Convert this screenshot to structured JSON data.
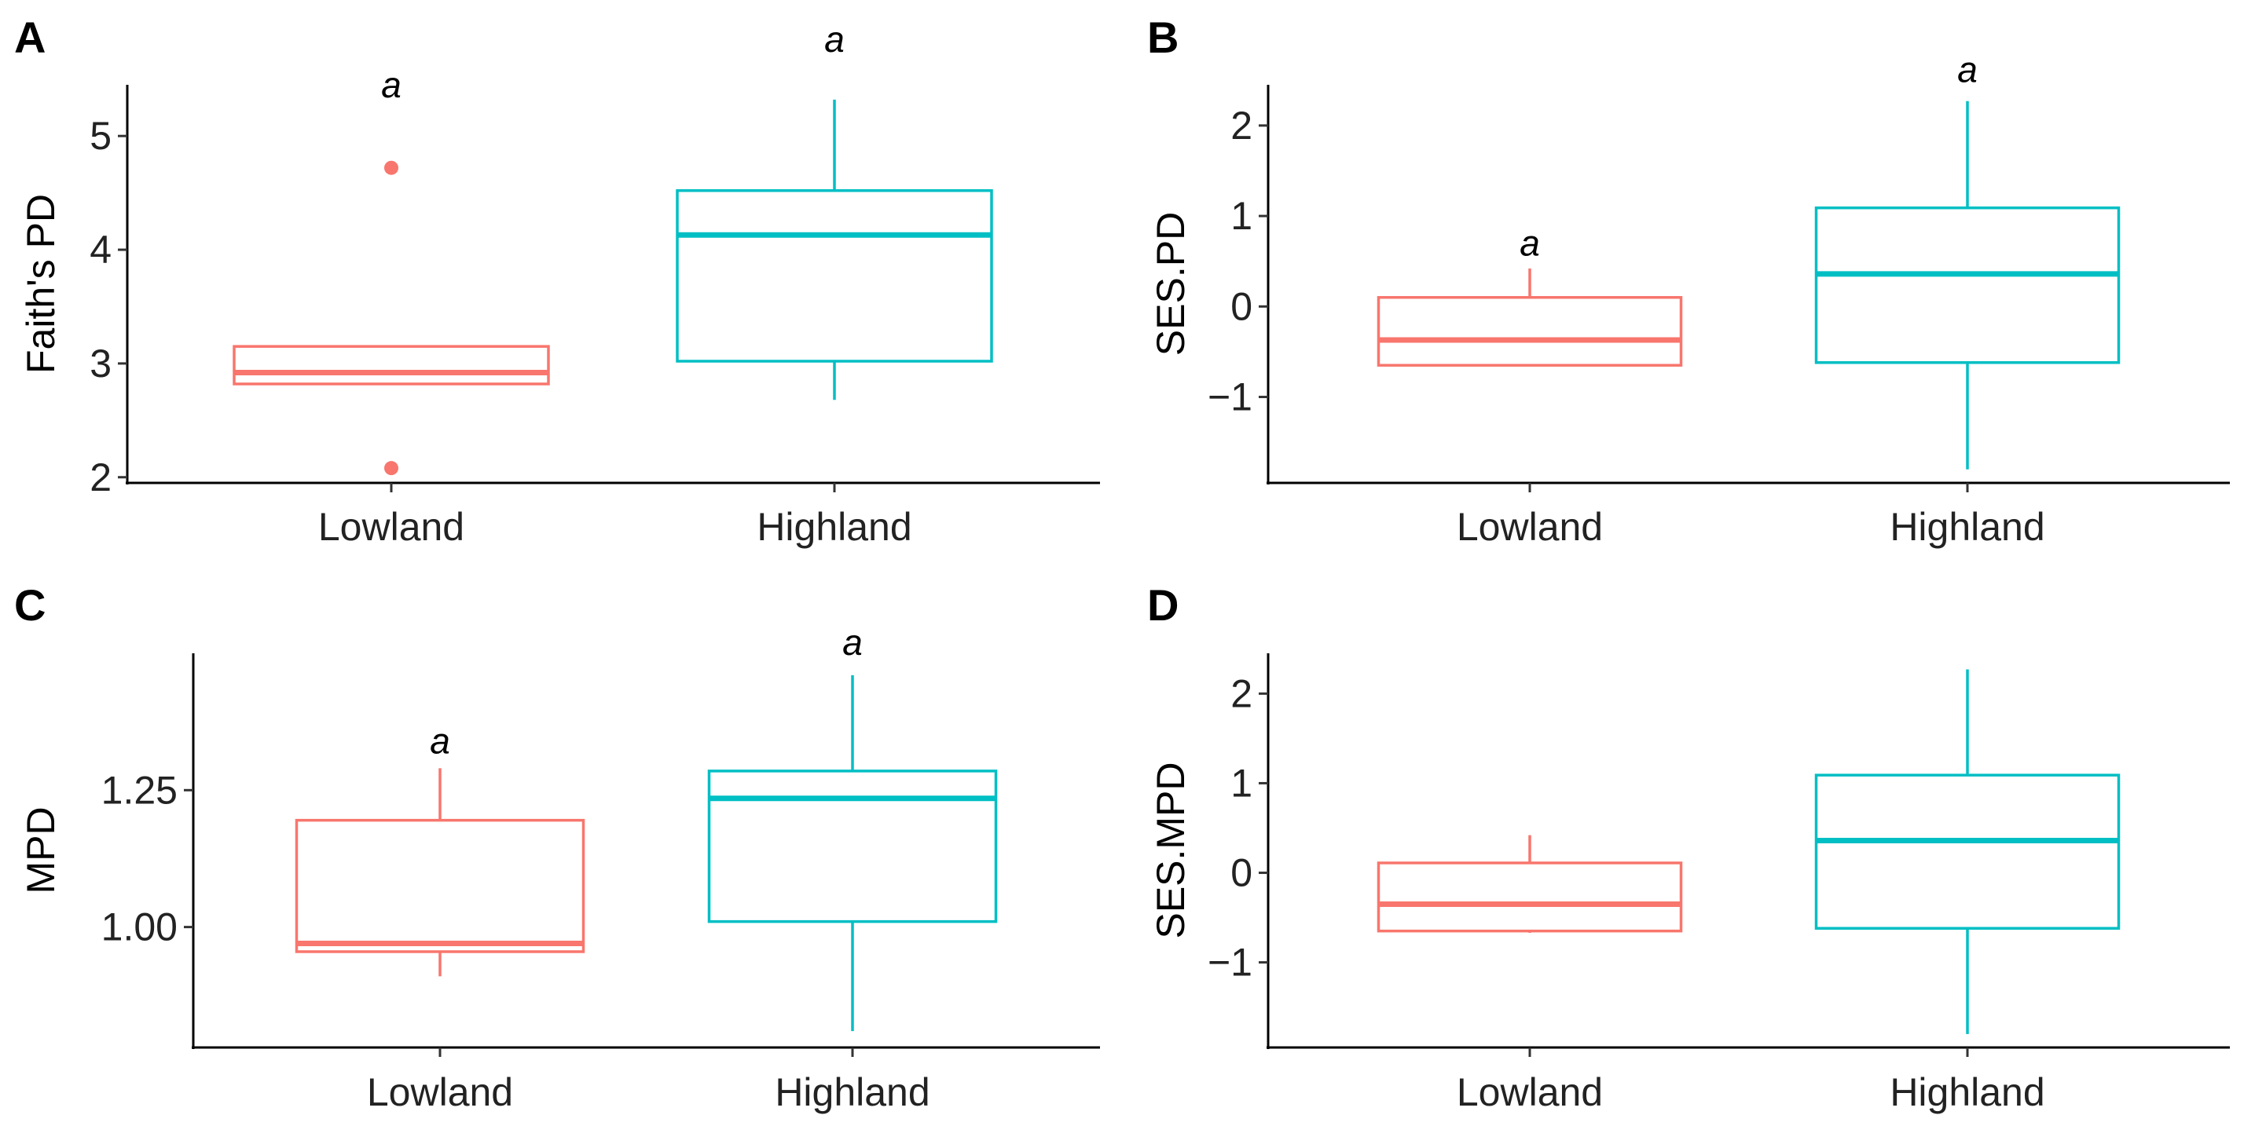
{
  "chart_data": [
    {
      "panel": "A",
      "type": "box",
      "ylabel": "Faith's PD",
      "xlabel": "",
      "categories": [
        "Lowland",
        "Highland"
      ],
      "ylim": [
        1.95,
        5.45
      ],
      "yticks": [
        2,
        3,
        4,
        5
      ],
      "ytick_labels": [
        "2",
        "3",
        "4",
        "5"
      ],
      "boxes": [
        {
          "category": "Lowland",
          "whisker_low": 2.82,
          "q1": 2.82,
          "median": 2.92,
          "q3": 3.15,
          "whisker_high": 3.15,
          "outliers": [
            4.72,
            2.08
          ],
          "sig_letter": "a",
          "sig_y": 5.45
        },
        {
          "category": "Highland",
          "whisker_low": 2.68,
          "q1": 3.02,
          "median": 4.13,
          "q3": 4.52,
          "whisker_high": 5.32,
          "outliers": [],
          "sig_letter": "a",
          "sig_y": 5.85
        }
      ],
      "colors": {
        "Lowland": "#F8766D",
        "Highland": "#00BFC4"
      }
    },
    {
      "panel": "B",
      "type": "box",
      "ylabel": "SES.PD",
      "xlabel": "",
      "categories": [
        "Lowland",
        "Highland"
      ],
      "ylim": [
        -1.95,
        2.45
      ],
      "yticks": [
        -1,
        0,
        1,
        2
      ],
      "ytick_labels": [
        "−1",
        "0",
        "1",
        "2"
      ],
      "boxes": [
        {
          "category": "Lowland",
          "whisker_low": -0.66,
          "q1": -0.65,
          "median": -0.37,
          "q3": 0.1,
          "whisker_high": 0.42,
          "outliers": [],
          "sig_letter": "a",
          "sig_y": 0.7
        },
        {
          "category": "Highland",
          "whisker_low": -1.8,
          "q1": -0.62,
          "median": 0.36,
          "q3": 1.09,
          "whisker_high": 2.27,
          "outliers": [],
          "sig_letter": "a",
          "sig_y": 2.62
        }
      ],
      "colors": {
        "Lowland": "#F8766D",
        "Highland": "#00BFC4"
      }
    },
    {
      "panel": "C",
      "type": "box",
      "ylabel": "MPD",
      "xlabel": "",
      "categories": [
        "Lowland",
        "Highland"
      ],
      "ylim": [
        0.78,
        1.5
      ],
      "yticks": [
        1.0,
        1.25
      ],
      "ytick_labels": [
        "1.00",
        "1.25"
      ],
      "boxes": [
        {
          "category": "Lowland",
          "whisker_low": 0.91,
          "q1": 0.955,
          "median": 0.97,
          "q3": 1.195,
          "whisker_high": 1.29,
          "outliers": [],
          "sig_letter": "a",
          "sig_y": 1.34
        },
        {
          "category": "Highland",
          "whisker_low": 0.81,
          "q1": 1.01,
          "median": 1.235,
          "q3": 1.285,
          "whisker_high": 1.46,
          "outliers": [],
          "sig_letter": "a",
          "sig_y": 1.52
        }
      ],
      "colors": {
        "Lowland": "#F8766D",
        "Highland": "#00BFC4"
      }
    },
    {
      "panel": "D",
      "type": "box",
      "ylabel": "SES.MPD",
      "xlabel": "",
      "categories": [
        "Lowland",
        "Highland"
      ],
      "ylim": [
        -1.95,
        2.45
      ],
      "yticks": [
        -1,
        0,
        1,
        2
      ],
      "ytick_labels": [
        "−1",
        "0",
        "1",
        "2"
      ],
      "boxes": [
        {
          "category": "Lowland",
          "whisker_low": -0.67,
          "q1": -0.65,
          "median": -0.35,
          "q3": 0.11,
          "whisker_high": 0.42,
          "outliers": [],
          "sig_letter": "",
          "sig_y": 0.7
        },
        {
          "category": "Highland",
          "whisker_low": -1.8,
          "q1": -0.62,
          "median": 0.36,
          "q3": 1.09,
          "whisker_high": 2.27,
          "outliers": [],
          "sig_letter": "",
          "sig_y": 2.62
        }
      ],
      "colors": {
        "Lowland": "#F8766D",
        "Highland": "#00BFC4"
      }
    }
  ]
}
